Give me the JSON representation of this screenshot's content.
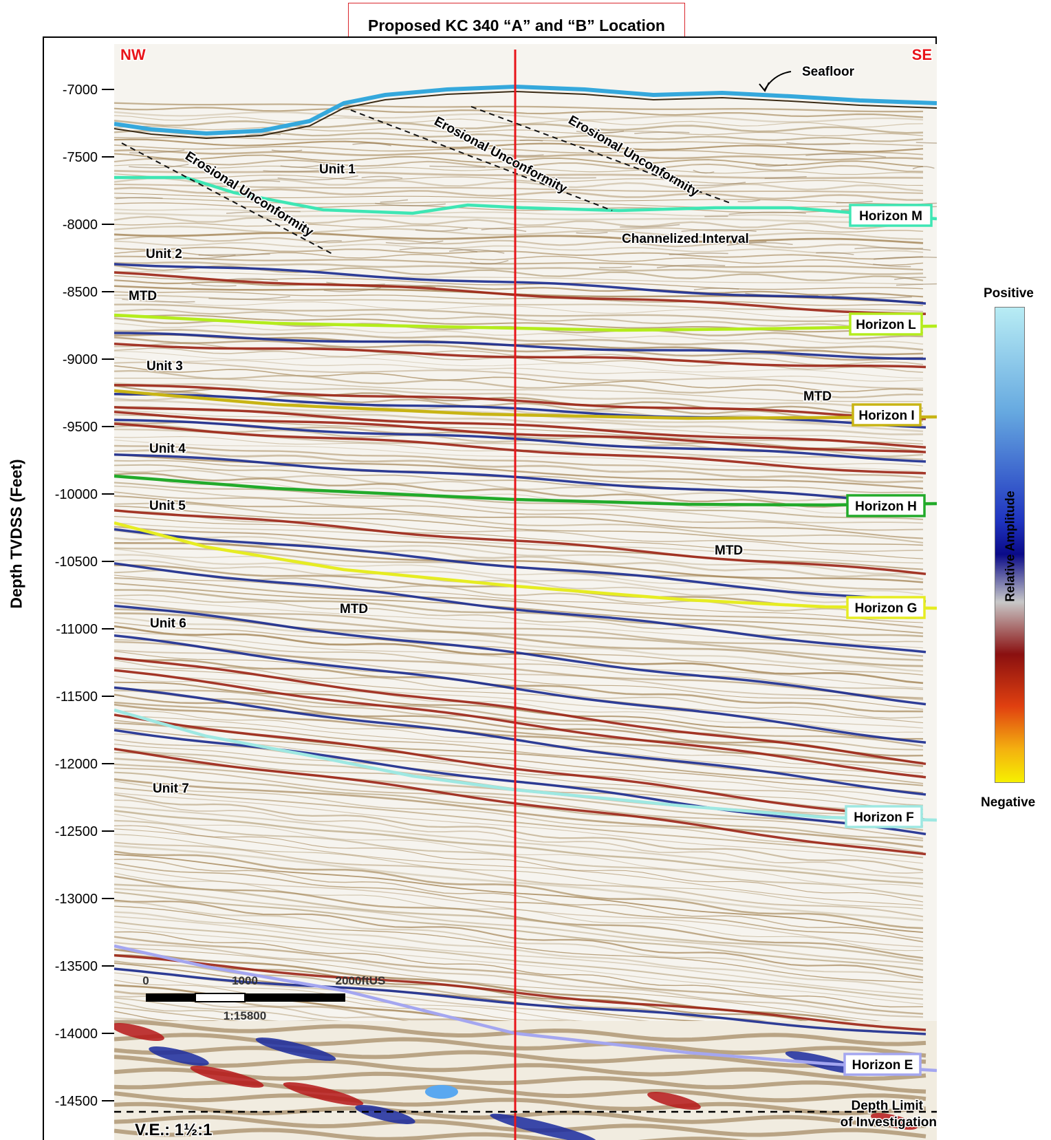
{
  "title": "Proposed KC 340 “A” and “B” Location",
  "y_axis": {
    "label": "Depth TVDSS (Feet)",
    "ticks": [
      "-7000",
      "-7500",
      "-8000",
      "-8500",
      "-9000",
      "-9500",
      "-10000",
      "-10500",
      "-11000",
      "-11500",
      "-12000",
      "-12500",
      "-13000",
      "-13500",
      "-14000",
      "-14500"
    ]
  },
  "direction": {
    "left": "NW",
    "right": "SE"
  },
  "colorbar": {
    "top": "Positive",
    "middle": "Relative Amplitude",
    "bottom": "Negative"
  },
  "horizons": [
    {
      "name": "Horizon M",
      "color": "#3ee6b4"
    },
    {
      "name": "Horizon L",
      "color": "#b4ec1c"
    },
    {
      "name": "Horizon I",
      "color": "#c8b414"
    },
    {
      "name": "Horizon H",
      "color": "#22aa2a"
    },
    {
      "name": "Horizon G",
      "color": "#e6ec22"
    },
    {
      "name": "Horizon F",
      "color": "#9ee8e2"
    },
    {
      "name": "Horizon E",
      "color": "#a4a6f0"
    }
  ],
  "units": [
    "Unit 1",
    "Unit 2",
    "Unit 3",
    "Unit 4",
    "Unit 5",
    "Unit 6",
    "Unit 7"
  ],
  "mtd_label": "MTD",
  "annotations": {
    "seafloor": "Seafloor",
    "erosional": "Erosional Unconformity",
    "channelized": "Channelized Interval",
    "depth_limit": [
      "Depth Limit",
      "of Investigation"
    ],
    "ve": "V.E.: 1½:1"
  },
  "scale_bar": {
    "ticks": [
      "0",
      "1000",
      "2000"
    ],
    "unit": "ftUS",
    "ratio": "1:15800"
  },
  "colors": {
    "well_line": "#e8141a",
    "seafloor": "#35a8dc",
    "trough": "#9b2414",
    "peak": "#1a2a8e",
    "wiggle": "#8a6a3a"
  }
}
